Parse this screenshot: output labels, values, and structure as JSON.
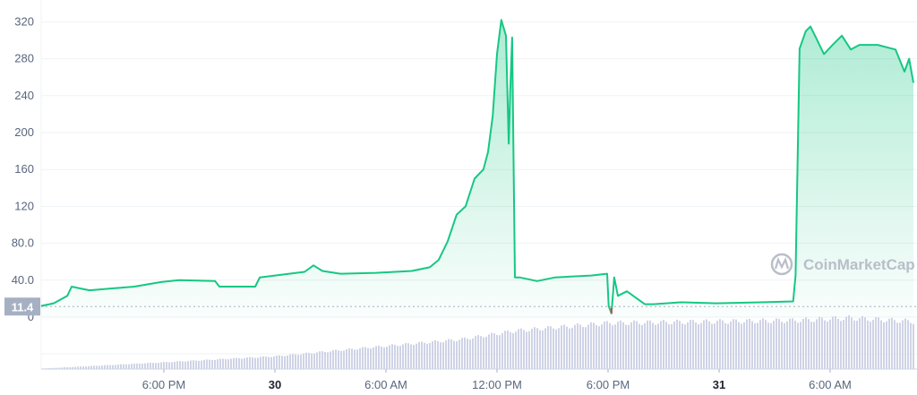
{
  "chart_data": {
    "type": "area",
    "watermark": "CoinMarketCap",
    "ylim": [
      0,
      330
    ],
    "yticks": [
      "320",
      "280",
      "240",
      "200",
      "160",
      "120",
      "80.0",
      "40.0",
      "0"
    ],
    "ytick_values": [
      320,
      280,
      240,
      200,
      160,
      120,
      80,
      40,
      0
    ],
    "current_price_label": "11.4",
    "current_price": 11.4,
    "grid": true,
    "xticks": [
      {
        "label": "6:00 PM",
        "t": "29T18:00",
        "bold": false
      },
      {
        "label": "30",
        "t": "30T00:00",
        "bold": true
      },
      {
        "label": "6:00 AM",
        "t": "30T06:00",
        "bold": false
      },
      {
        "label": "12:00 PM",
        "t": "30T12:00",
        "bold": false
      },
      {
        "label": "6:00 PM",
        "t": "30T18:00",
        "bold": false
      },
      {
        "label": "31",
        "t": "31T00:00",
        "bold": true
      },
      {
        "label": "6:00 AM",
        "t": "31T06:00",
        "bold": false
      }
    ],
    "colors": {
      "line": "#16c784",
      "down": "#ea3943",
      "volume": "#cfd3e6",
      "label_bg": "#a6b0c3"
    },
    "price": [
      [
        "29T11:22",
        12
      ],
      [
        "29T12:03",
        15
      ],
      [
        "29T12:47",
        23
      ],
      [
        "29T13:01",
        33
      ],
      [
        "29T13:30",
        31
      ],
      [
        "29T13:59",
        29
      ],
      [
        "29T16:24",
        33
      ],
      [
        "29T17:51",
        38
      ],
      [
        "29T18:49",
        40
      ],
      [
        "29T20:46",
        39
      ],
      [
        "29T21:00",
        33
      ],
      [
        "29T22:56",
        33
      ],
      [
        "29T23:11",
        43
      ],
      [
        "30T01:36",
        49
      ],
      [
        "30T02:05",
        56
      ],
      [
        "30T02:34",
        50
      ],
      [
        "30T03:32",
        47
      ],
      [
        "30T05:28",
        48
      ],
      [
        "30T07:24",
        50
      ],
      [
        "30T08:22",
        54
      ],
      [
        "30T08:51",
        62
      ],
      [
        "30T09:20",
        82
      ],
      [
        "30T09:49",
        111
      ],
      [
        "30T10:18",
        120
      ],
      [
        "30T10:47",
        150
      ],
      [
        "30T11:16",
        160
      ],
      [
        "30T11:31",
        179
      ],
      [
        "30T11:46",
        218
      ],
      [
        "30T12:00",
        285
      ],
      [
        "30T12:14",
        322
      ],
      [
        "30T12:29",
        305
      ],
      [
        "30T12:38",
        188
      ],
      [
        "30T12:43",
        246
      ],
      [
        "30T12:49",
        303
      ],
      [
        "30T12:58",
        43
      ],
      [
        "30T13:13",
        43
      ],
      [
        "30T14:10",
        39
      ],
      [
        "30T15:08",
        43
      ],
      [
        "30T17:05",
        45
      ],
      [
        "30T17:57",
        47
      ],
      [
        "30T18:02",
        12
      ],
      [
        "30T18:11",
        4
      ],
      [
        "30T18:20",
        43
      ],
      [
        "30T18:32",
        23
      ],
      [
        "30T19:01",
        28
      ],
      [
        "30T19:59",
        14
      ],
      [
        "30T20:28",
        14
      ],
      [
        "30T21:55",
        16
      ],
      [
        "30T23:51",
        15
      ],
      [
        "31T02:16",
        16
      ],
      [
        "31T04:00",
        17
      ],
      [
        "31T04:08",
        45
      ],
      [
        "31T04:21",
        291
      ],
      [
        "31T04:41",
        310
      ],
      [
        "31T04:56",
        315
      ],
      [
        "31T05:11",
        305
      ],
      [
        "31T05:40",
        285
      ],
      [
        "31T06:08",
        295
      ],
      [
        "31T06:38",
        305
      ],
      [
        "31T07:07",
        290
      ],
      [
        "31T07:35",
        295
      ],
      [
        "31T08:34",
        295
      ],
      [
        "31T09:32",
        290
      ],
      [
        "31T10:01",
        266
      ],
      [
        "31T10:16",
        280
      ],
      [
        "31T10:30",
        254
      ]
    ],
    "volume_relative": [
      [
        "29T11:22",
        1
      ],
      [
        "29T17:51",
        13
      ],
      [
        "30T00:00",
        25
      ],
      [
        "30T05:00",
        42
      ],
      [
        "30T10:00",
        58
      ],
      [
        "30T13:00",
        75
      ],
      [
        "30T18:00",
        90
      ],
      [
        "31T04:00",
        95
      ],
      [
        "31T07:00",
        100
      ],
      [
        "31T10:30",
        93
      ]
    ]
  }
}
